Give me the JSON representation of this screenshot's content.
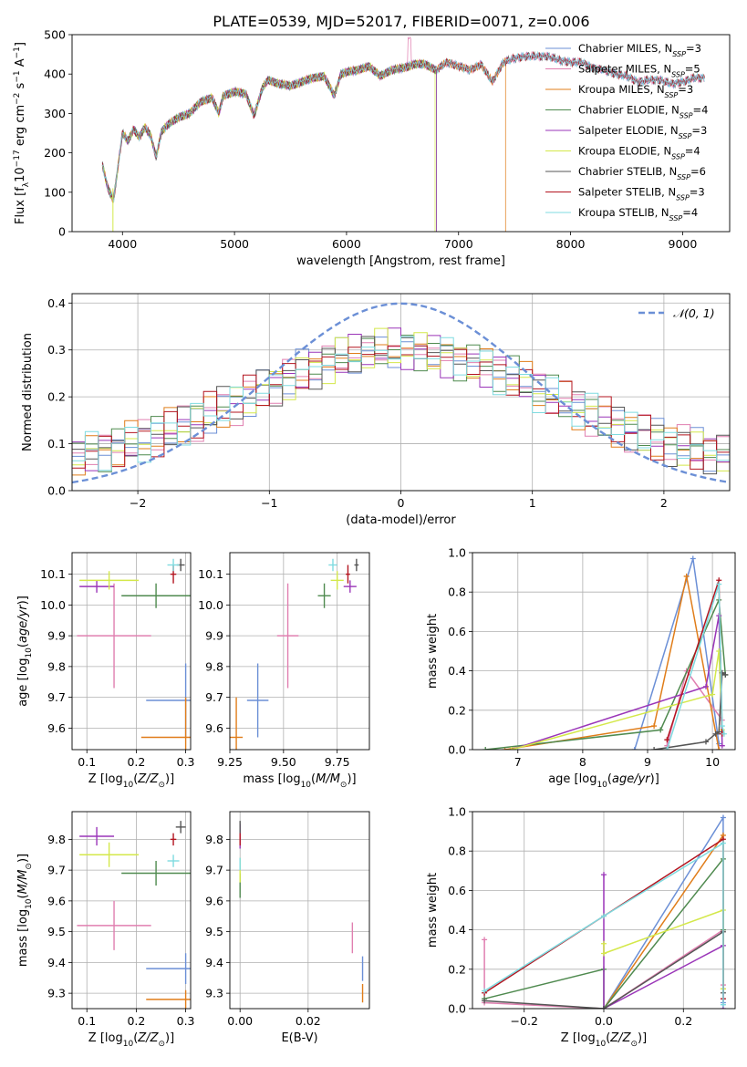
{
  "figure": {
    "title": "PLATE=0539, MJD=52017, FIBERID=0071, z=0.006"
  },
  "colors": {
    "chabrier_miles": "#6b8fd6",
    "salpeter_miles": "#e07fb0",
    "kroupa_miles": "#e07d1a",
    "chabrier_elodie": "#4f8a4f",
    "salpeter_elodie": "#9a35b8",
    "kroupa_elodie": "#d4e84a",
    "chabrier_stelib": "#555555",
    "salpeter_stelib": "#b3141f",
    "kroupa_stelib": "#7fdbe0"
  },
  "chart_data": [
    {
      "type": "line",
      "panel": "spectrum",
      "xlabel": "wavelength [Angstrom, rest frame]",
      "ylabel": "Flux [f_λ 10^-17 erg cm^-2 s^-1 A^-1]",
      "xlim": [
        3550,
        9420
      ],
      "ylim": [
        0,
        500
      ],
      "xticks": [
        4000,
        5000,
        6000,
        7000,
        8000,
        9000
      ],
      "yticks": [
        0,
        100,
        200,
        300,
        400,
        500
      ],
      "grid": false,
      "legend_placement": "top-right",
      "spectrum_x": [
        3820,
        3870,
        3920,
        4000,
        4050,
        4100,
        4150,
        4200,
        4250,
        4300,
        4350,
        4400,
        4500,
        4600,
        4700,
        4800,
        4860,
        4900,
        5000,
        5100,
        5175,
        5250,
        5300,
        5400,
        5500,
        5600,
        5700,
        5800,
        5890,
        5950,
        6000,
        6100,
        6200,
        6300,
        6400,
        6500,
        6563,
        6600,
        6700,
        6800,
        6900,
        7000,
        7100,
        7200,
        7300,
        7400,
        7500,
        7600,
        7700,
        7800,
        7900,
        8000,
        8100,
        8200,
        8300,
        8400,
        8500,
        8600,
        8700,
        8800,
        8900,
        9000,
        9100,
        9200
      ],
      "spectrum_y": [
        170,
        110,
        80,
        250,
        230,
        260,
        240,
        265,
        245,
        190,
        255,
        270,
        290,
        300,
        330,
        340,
        300,
        345,
        355,
        350,
        295,
        365,
        385,
        375,
        370,
        380,
        390,
        395,
        345,
        400,
        405,
        410,
        420,
        395,
        410,
        415,
        420,
        425,
        425,
        410,
        430,
        420,
        410,
        425,
        380,
        430,
        440,
        445,
        445,
        445,
        435,
        430,
        430,
        415,
        410,
        400,
        395,
        380,
        385,
        385,
        375,
        380,
        390,
        390
      ],
      "series": [
        {
          "name": "Chabrier MILES, N_SSP=3",
          "color_key": "chabrier_miles",
          "cutoff": null
        },
        {
          "name": "Salpeter MILES, N_SSP=5",
          "color_key": "salpeter_miles",
          "cutoff": null
        },
        {
          "name": "Kroupa MILES, N_SSP=3",
          "color_key": "kroupa_miles",
          "cutoff": 7420
        },
        {
          "name": "Chabrier ELODIE, N_SSP=4",
          "color_key": "chabrier_elodie",
          "cutoff": 6800
        },
        {
          "name": "Salpeter ELODIE, N_SSP=3",
          "color_key": "salpeter_elodie",
          "cutoff": 6800
        },
        {
          "name": "Kroupa ELODIE, N_SSP=4",
          "color_key": "kroupa_elodie",
          "cutoff": 6790
        },
        {
          "name": "Chabrier STELIB, N_SSP=6",
          "color_key": "chabrier_stelib",
          "cutoff": null
        },
        {
          "name": "Salpeter STELIB, N_SSP=3",
          "color_key": "salpeter_stelib",
          "cutoff": null
        },
        {
          "name": "Kroupa STELIB, N_SSP=4",
          "color_key": "kroupa_stelib",
          "cutoff": null
        }
      ]
    },
    {
      "type": "area",
      "panel": "residuals",
      "xlabel": "(data-model)/error",
      "ylabel": "Normed distribution",
      "xlim": [
        -2.5,
        2.5
      ],
      "ylim": [
        0,
        0.42
      ],
      "xticks": [
        -2,
        -1,
        0,
        1,
        2
      ],
      "yticks": [
        0.0,
        0.1,
        0.2,
        0.3,
        0.4
      ],
      "grid": true,
      "legend_placement": "top-right",
      "reference_curve": {
        "name": "𝒩(0, 1)",
        "mean": 0,
        "sigma": 1,
        "color": "#6b8fd6"
      },
      "hist_bin_width": 0.1,
      "hist_envelope": {
        "center": 0.3,
        "sigma": 1.15,
        "floor": 0.05
      }
    },
    {
      "type": "scatter",
      "panel": "age-vs-Z",
      "xlabel": "Z [log10(Z/Z☉)]",
      "ylabel": "age [log10(age/yr)]",
      "xlim": [
        0.07,
        0.31
      ],
      "ylim": [
        9.53,
        10.17
      ],
      "xticks": [
        0.1,
        0.2,
        0.3
      ],
      "yticks": [
        9.6,
        9.7,
        9.8,
        9.9,
        10.0,
        10.1
      ],
      "grid": true,
      "points": [
        {
          "color_key": "chabrier_miles",
          "x": 0.3,
          "y": 9.69,
          "xerr": 0.08,
          "yerr": 0.12
        },
        {
          "color_key": "salpeter_miles",
          "x": 0.155,
          "y": 9.9,
          "xerr": 0.075,
          "yerr": 0.17
        },
        {
          "color_key": "kroupa_miles",
          "x": 0.3,
          "y": 9.57,
          "xerr": 0.09,
          "yerr": 0.13
        },
        {
          "color_key": "chabrier_elodie",
          "x": 0.24,
          "y": 10.03,
          "xerr": 0.07,
          "yerr": 0.04
        },
        {
          "color_key": "salpeter_elodie",
          "x": 0.12,
          "y": 10.06,
          "xerr": 0.035,
          "yerr": 0.02
        },
        {
          "color_key": "kroupa_elodie",
          "x": 0.145,
          "y": 10.08,
          "xerr": 0.06,
          "yerr": 0.03
        },
        {
          "color_key": "chabrier_stelib",
          "x": 0.29,
          "y": 10.13,
          "xerr": 0.008,
          "yerr": 0.02
        },
        {
          "color_key": "salpeter_stelib",
          "x": 0.275,
          "y": 10.1,
          "xerr": 0.006,
          "yerr": 0.03
        },
        {
          "color_key": "kroupa_stelib",
          "x": 0.275,
          "y": 10.13,
          "xerr": 0.012,
          "yerr": 0.02
        }
      ]
    },
    {
      "type": "scatter",
      "panel": "age-vs-mass",
      "xlabel": "mass [log10(M/M☉)]",
      "ylabel": "",
      "xlim": [
        9.25,
        9.9
      ],
      "ylim": [
        9.53,
        10.17
      ],
      "xticks": [
        9.25,
        9.5,
        9.75
      ],
      "yticks": [
        9.6,
        9.7,
        9.8,
        9.9,
        10.0,
        10.1
      ],
      "grid": true,
      "points": [
        {
          "color_key": "chabrier_miles",
          "x": 9.38,
          "y": 9.69,
          "xerr": 0.05,
          "yerr": 0.12
        },
        {
          "color_key": "salpeter_miles",
          "x": 9.52,
          "y": 9.9,
          "xerr": 0.05,
          "yerr": 0.17
        },
        {
          "color_key": "kroupa_miles",
          "x": 9.28,
          "y": 9.57,
          "xerr": 0.03,
          "yerr": 0.13
        },
        {
          "color_key": "chabrier_elodie",
          "x": 9.69,
          "y": 10.03,
          "xerr": 0.03,
          "yerr": 0.04
        },
        {
          "color_key": "salpeter_elodie",
          "x": 9.81,
          "y": 10.06,
          "xerr": 0.03,
          "yerr": 0.02
        },
        {
          "color_key": "kroupa_elodie",
          "x": 9.75,
          "y": 10.08,
          "xerr": 0.03,
          "yerr": 0.03
        },
        {
          "color_key": "chabrier_stelib",
          "x": 9.84,
          "y": 10.13,
          "xerr": 0.01,
          "yerr": 0.02
        },
        {
          "color_key": "salpeter_stelib",
          "x": 9.8,
          "y": 10.1,
          "xerr": 0.01,
          "yerr": 0.03
        },
        {
          "color_key": "kroupa_stelib",
          "x": 9.73,
          "y": 10.13,
          "xerr": 0.02,
          "yerr": 0.02
        }
      ]
    },
    {
      "type": "line",
      "panel": "massweight-vs-age",
      "xlabel": "age [log10(age/yr)]",
      "ylabel": "mass weight",
      "xlim": [
        6.3,
        10.35
      ],
      "ylim": [
        0,
        1
      ],
      "xticks": [
        7,
        8,
        9,
        10
      ],
      "yticks": [
        0.0,
        0.2,
        0.4,
        0.6,
        0.8,
        1.0
      ],
      "grid": true,
      "series": [
        {
          "color_key": "chabrier_miles",
          "x": [
            8.8,
            9.7,
            10.1
          ],
          "y": [
            0.0,
            0.97,
            0.03
          ]
        },
        {
          "color_key": "salpeter_miles",
          "x": [
            9.3,
            9.6,
            10.15
          ],
          "y": [
            0.02,
            0.4,
            0.15
          ]
        },
        {
          "color_key": "kroupa_miles",
          "x": [
            6.8,
            9.1,
            9.6,
            10.1
          ],
          "y": [
            0.0,
            0.12,
            0.88,
            0.0
          ]
        },
        {
          "color_key": "chabrier_elodie",
          "x": [
            6.5,
            9.2,
            10.1,
            10.2
          ],
          "y": [
            0.0,
            0.1,
            0.76,
            0.38
          ]
        },
        {
          "color_key": "salpeter_elodie",
          "x": [
            6.9,
            9.9,
            10.1,
            10.15
          ],
          "y": [
            0.0,
            0.32,
            0.68,
            0.02
          ]
        },
        {
          "color_key": "kroupa_elodie",
          "x": [
            6.9,
            10.0,
            10.1,
            10.15
          ],
          "y": [
            0.0,
            0.28,
            0.5,
            0.1
          ]
        },
        {
          "color_key": "chabrier_stelib",
          "x": [
            9.1,
            9.9,
            10.05,
            10.1,
            10.15,
            10.2
          ],
          "y": [
            0.0,
            0.04,
            0.08,
            0.09,
            0.39,
            0.38
          ]
        },
        {
          "color_key": "salpeter_stelib",
          "x": [
            9.3,
            10.1,
            10.15
          ],
          "y": [
            0.05,
            0.86,
            0.08
          ]
        },
        {
          "color_key": "kroupa_stelib",
          "x": [
            9.3,
            10.1,
            10.15,
            10.18
          ],
          "y": [
            0.0,
            0.84,
            0.12,
            0.08
          ]
        }
      ]
    },
    {
      "type": "scatter",
      "panel": "mass-vs-Z",
      "xlabel": "Z [log10(Z/Z☉)]",
      "ylabel": "mass [log10(M/M☉)]",
      "xlim": [
        0.07,
        0.31
      ],
      "ylim": [
        9.25,
        9.89
      ],
      "xticks": [
        0.1,
        0.2,
        0.3
      ],
      "yticks": [
        9.3,
        9.4,
        9.5,
        9.6,
        9.7,
        9.8
      ],
      "grid": true,
      "points": [
        {
          "color_key": "chabrier_miles",
          "x": 0.3,
          "y": 9.38,
          "xerr": 0.08,
          "yerr": 0.05
        },
        {
          "color_key": "salpeter_miles",
          "x": 0.155,
          "y": 9.52,
          "xerr": 0.075,
          "yerr": 0.08
        },
        {
          "color_key": "kroupa_miles",
          "x": 0.3,
          "y": 9.28,
          "xerr": 0.08,
          "yerr": 0.03
        },
        {
          "color_key": "chabrier_elodie",
          "x": 0.24,
          "y": 9.69,
          "xerr": 0.07,
          "yerr": 0.04
        },
        {
          "color_key": "salpeter_elodie",
          "x": 0.12,
          "y": 9.81,
          "xerr": 0.035,
          "yerr": 0.03
        },
        {
          "color_key": "kroupa_elodie",
          "x": 0.145,
          "y": 9.75,
          "xerr": 0.06,
          "yerr": 0.04
        },
        {
          "color_key": "chabrier_stelib",
          "x": 0.29,
          "y": 9.84,
          "xerr": 0.01,
          "yerr": 0.02
        },
        {
          "color_key": "salpeter_stelib",
          "x": 0.275,
          "y": 9.8,
          "xerr": 0.006,
          "yerr": 0.02
        },
        {
          "color_key": "kroupa_stelib",
          "x": 0.275,
          "y": 9.73,
          "xerr": 0.012,
          "yerr": 0.02
        }
      ]
    },
    {
      "type": "scatter",
      "panel": "mass-vs-ebv",
      "xlabel": "E(B-V)",
      "ylabel": "",
      "xlim": [
        -0.003,
        0.038
      ],
      "ylim": [
        9.25,
        9.89
      ],
      "xticks": [
        0.0,
        0.02
      ],
      "yticks": [
        9.3,
        9.4,
        9.5,
        9.6,
        9.7,
        9.8
      ],
      "grid": true,
      "points": [
        {
          "color_key": "chabrier_miles",
          "x": 0.036,
          "y": 9.38,
          "xerr": 0,
          "yerr": 0.04
        },
        {
          "color_key": "salpeter_miles",
          "x": 0.033,
          "y": 9.48,
          "xerr": 0,
          "yerr": 0.05
        },
        {
          "color_key": "kroupa_miles",
          "x": 0.036,
          "y": 9.3,
          "xerr": 0,
          "yerr": 0.03
        },
        {
          "color_key": "chabrier_elodie",
          "x": 0.0,
          "y": 9.65,
          "xerr": 0,
          "yerr": 0.04
        },
        {
          "color_key": "salpeter_elodie",
          "x": 0.0,
          "y": 9.81,
          "xerr": 0,
          "yerr": 0.04
        },
        {
          "color_key": "kroupa_elodie",
          "x": 0.0,
          "y": 9.7,
          "xerr": 0,
          "yerr": 0.04
        },
        {
          "color_key": "chabrier_stelib",
          "x": 0.0,
          "y": 9.84,
          "xerr": 0,
          "yerr": 0.02
        },
        {
          "color_key": "salpeter_stelib",
          "x": 0.0,
          "y": 9.8,
          "xerr": 0,
          "yerr": 0.02
        },
        {
          "color_key": "kroupa_stelib",
          "x": 0.0,
          "y": 9.72,
          "xerr": 0,
          "yerr": 0.02
        }
      ]
    },
    {
      "type": "line",
      "panel": "massweight-vs-Z",
      "xlabel": "Z [log10(Z/Z☉)]",
      "ylabel": "mass weight",
      "xlim": [
        -0.33,
        0.33
      ],
      "ylim": [
        0,
        1
      ],
      "xticks": [
        -0.2,
        0.0,
        0.2
      ],
      "yticks": [
        0.0,
        0.2,
        0.4,
        0.6,
        0.8,
        1.0
      ],
      "grid": true,
      "series": [
        {
          "color_key": "chabrier_miles",
          "x": [
            0.0,
            0.3,
            0.3
          ],
          "y": [
            0.0,
            0.97,
            0.03
          ]
        },
        {
          "color_key": "salpeter_miles",
          "x": [
            -0.3,
            -0.3,
            0.0,
            0.3,
            0.3
          ],
          "y": [
            0.35,
            0.03,
            0.0,
            0.4,
            0.12
          ]
        },
        {
          "color_key": "kroupa_miles",
          "x": [
            0.0,
            0.3,
            0.3
          ],
          "y": [
            0.0,
            0.88,
            0.1
          ]
        },
        {
          "color_key": "chabrier_elodie",
          "x": [
            -0.3,
            0.0,
            0.0,
            0.3,
            0.3
          ],
          "y": [
            0.05,
            0.2,
            0.0,
            0.76,
            0.4
          ]
        },
        {
          "color_key": "salpeter_elodie",
          "x": [
            0.0,
            0.0,
            0.3,
            0.3
          ],
          "y": [
            0.68,
            0.0,
            0.32,
            0.0
          ]
        },
        {
          "color_key": "kroupa_elodie",
          "x": [
            0.0,
            0.0,
            0.3,
            0.3
          ],
          "y": [
            0.33,
            0.28,
            0.5,
            0.1
          ]
        },
        {
          "color_key": "chabrier_stelib",
          "x": [
            -0.3,
            0.0,
            0.3,
            0.3
          ],
          "y": [
            0.04,
            0.0,
            0.39,
            0.08
          ]
        },
        {
          "color_key": "salpeter_stelib",
          "x": [
            -0.3,
            0.0,
            0.3,
            0.3
          ],
          "y": [
            0.08,
            0.47,
            0.86,
            0.05
          ]
        },
        {
          "color_key": "kroupa_stelib",
          "x": [
            -0.3,
            0.0,
            0.3,
            0.3
          ],
          "y": [
            0.09,
            0.47,
            0.84,
            0.02
          ]
        }
      ]
    }
  ]
}
